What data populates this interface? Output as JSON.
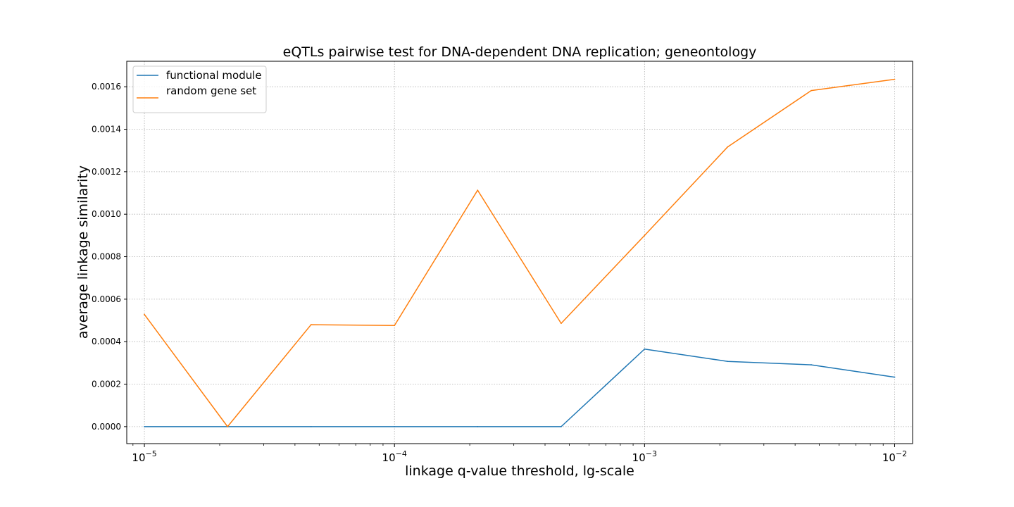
{
  "chart_data": {
    "type": "line",
    "title": "eQTLs pairwise test for DNA-dependent DNA replication; geneontology",
    "xlabel": "linkage q-value threshold, lg-scale",
    "ylabel": "average linkage similarity",
    "x_scale": "log",
    "xlim": [
      8.5e-06,
      0.0118
    ],
    "ylim": [
      -8e-05,
      0.00172
    ],
    "x_ticks": [
      {
        "value": 1e-05,
        "base": "10",
        "exp": "−5"
      },
      {
        "value": 0.0001,
        "base": "10",
        "exp": "−4"
      },
      {
        "value": 0.001,
        "base": "10",
        "exp": "−3"
      },
      {
        "value": 0.01,
        "base": "10",
        "exp": "−2"
      }
    ],
    "y_ticks": [
      {
        "value": 0.0,
        "label": "0.0000"
      },
      {
        "value": 0.0002,
        "label": "0.0002"
      },
      {
        "value": 0.0004,
        "label": "0.0004"
      },
      {
        "value": 0.0006,
        "label": "0.0006"
      },
      {
        "value": 0.0008,
        "label": "0.0008"
      },
      {
        "value": 0.001,
        "label": "0.0010"
      },
      {
        "value": 0.0012,
        "label": "0.0012"
      },
      {
        "value": 0.0014,
        "label": "0.0014"
      },
      {
        "value": 0.0016,
        "label": "0.0016"
      }
    ],
    "grid": true,
    "legend_position": "top-left",
    "x": [
      1e-05,
      2.15e-05,
      4.64e-05,
      0.0001,
      0.000215,
      0.000464,
      0.001,
      0.00215,
      0.00464,
      0.01
    ],
    "series": [
      {
        "name": "functional module",
        "color": "#1f77b4",
        "values": [
          0.0,
          0.0,
          0.0,
          0.0,
          0.0,
          0.0,
          0.000365,
          0.000307,
          0.000291,
          0.000233
        ]
      },
      {
        "name": "random gene set",
        "color": "#ff7f0e",
        "values": [
          0.000528,
          0.0,
          0.00048,
          0.000476,
          0.001113,
          0.000486,
          0.0009,
          0.001317,
          0.001582,
          0.001635
        ]
      }
    ]
  }
}
